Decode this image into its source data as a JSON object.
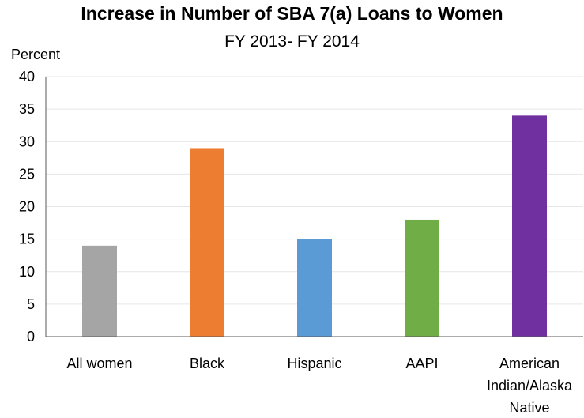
{
  "chart_data": {
    "type": "bar",
    "title": "Increase in Number of SBA 7(a) Loans to Women",
    "subtitle": "FY 2013- FY 2014",
    "ylabel": "Percent",
    "xlabel": "",
    "ylim": [
      0,
      40
    ],
    "yticks": [
      0,
      5,
      10,
      15,
      20,
      25,
      30,
      35,
      40
    ],
    "grid": true,
    "legend": "none",
    "categories": [
      [
        "All women"
      ],
      [
        "Black"
      ],
      [
        "Hispanic"
      ],
      [
        "AAPI"
      ],
      [
        "American",
        "Indian/Alaska",
        "Native"
      ]
    ],
    "values": [
      14,
      29,
      15,
      18,
      34
    ],
    "colors": [
      "#a5a5a5",
      "#ed7d31",
      "#5b9bd5",
      "#70ad47",
      "#7030a0"
    ]
  }
}
